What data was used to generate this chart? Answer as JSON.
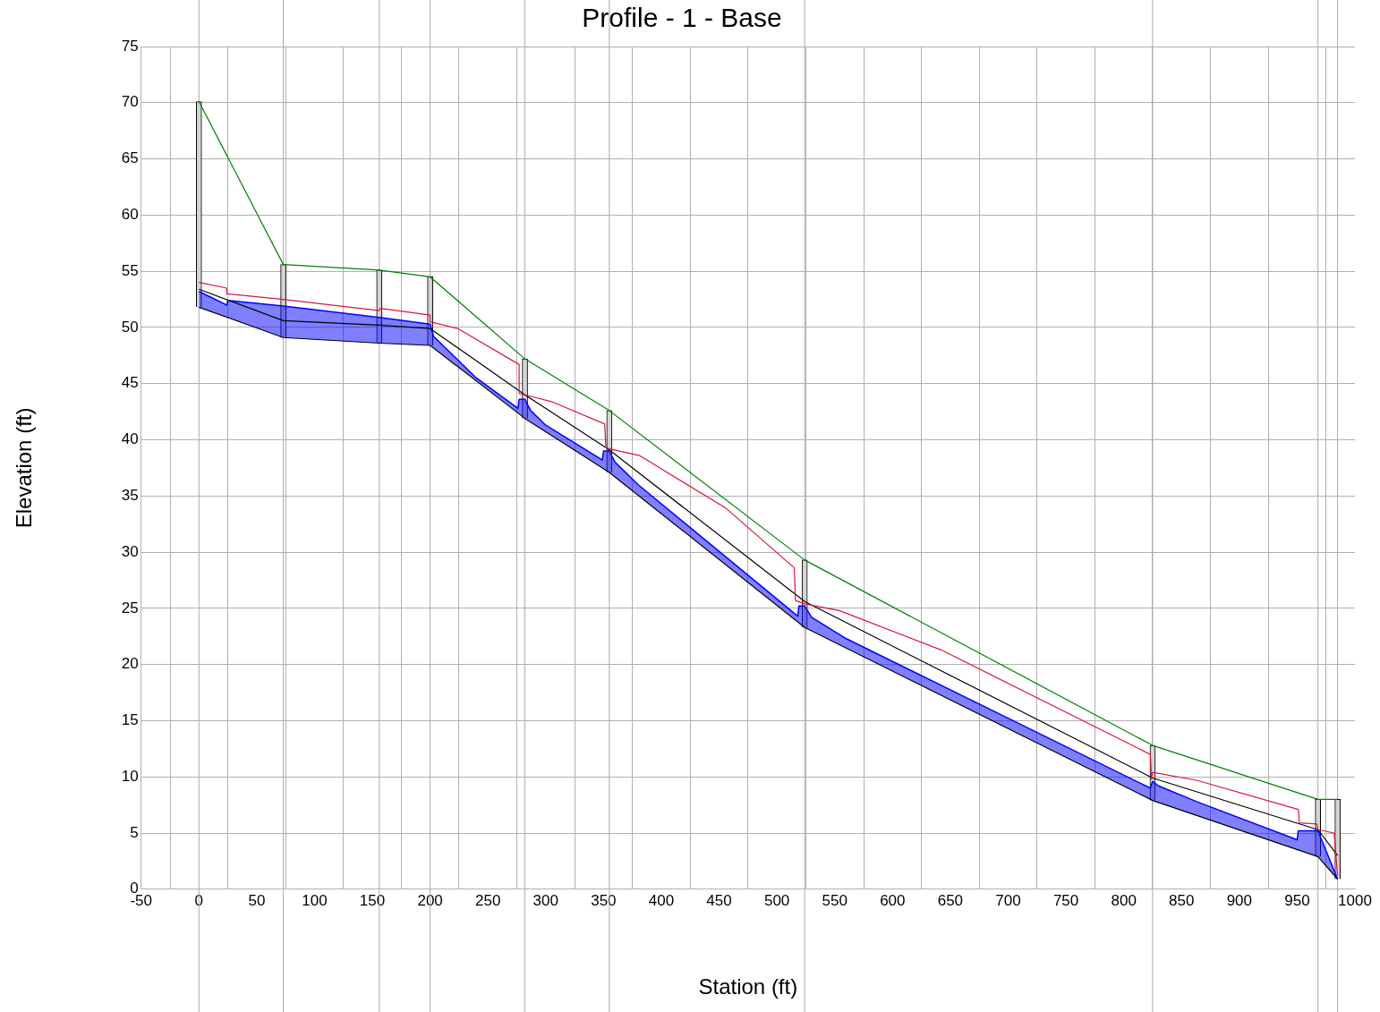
{
  "chart_data": {
    "type": "line",
    "title": "Profile - 1 - Base",
    "xlabel": "Station (ft)",
    "ylabel": "Elevation (ft)",
    "xlim": [
      -50,
      1000
    ],
    "xticks": [
      -50,
      0,
      50,
      100,
      150,
      200,
      250,
      300,
      350,
      400,
      450,
      500,
      550,
      600,
      650,
      700,
      750,
      800,
      850,
      900,
      950,
      1000
    ],
    "ylim": [
      0,
      75
    ],
    "yticks": [
      0,
      5,
      10,
      15,
      20,
      25,
      30,
      35,
      40,
      45,
      50,
      55,
      60,
      65,
      70,
      75
    ],
    "grid": true,
    "series": [
      {
        "color": "#008000",
        "x": [
          0,
          73,
          156,
          200,
          282,
          355,
          524,
          825,
          968,
          985
        ],
        "values": [
          70.1,
          55.6,
          55.1,
          54.5,
          47.2,
          42.6,
          29.3,
          12.8,
          8.0,
          8.0
        ]
      },
      {
        "type": "line",
        "color": "#dc143c",
        "x": [
          0,
          24,
          24,
          73,
          156,
          157,
          200,
          200,
          224,
          277,
          277,
          282,
          305,
          351,
          352,
          355,
          381,
          456,
          515,
          516,
          524,
          554,
          642,
          823,
          824,
          825,
          863,
          951,
          952,
          967,
          968,
          982,
          985
        ],
        "values": [
          54.0,
          53.5,
          53.0,
          52.5,
          51.5,
          51.7,
          51.1,
          50.5,
          49.9,
          46.7,
          44.1,
          44.0,
          43.4,
          41.4,
          39.3,
          39.2,
          38.6,
          33.9,
          28.6,
          25.7,
          25.4,
          24.8,
          21.3,
          12.0,
          9.8,
          10.4,
          9.7,
          7.1,
          5.9,
          5.8,
          5.3,
          5.0,
          1.2
        ]
      },
      {
        "type": "line",
        "color": "#000000",
        "x": [
          0,
          73,
          156,
          200,
          282,
          355,
          524,
          825,
          968,
          985
        ],
        "values": [
          53.4,
          50.6,
          50.2,
          49.9,
          44.0,
          39.1,
          25.6,
          9.9,
          5.3,
          3.0
        ]
      },
      {
        "type": "line",
        "color": "#000000",
        "x": [
          0,
          73,
          156,
          200,
          282,
          355,
          524,
          825,
          968,
          985
        ],
        "values": [
          51.8,
          49.1,
          48.6,
          48.4,
          41.9,
          37.1,
          23.3,
          7.9,
          2.9,
          0.9
        ]
      },
      {
        "type": "area",
        "color": "#0000ff",
        "x": [
          0,
          10,
          24,
          25,
          73,
          156,
          200,
          203,
          215,
          240,
          276,
          277,
          282,
          287,
          300,
          349,
          350,
          355,
          360,
          380,
          518,
          519,
          524,
          530,
          560,
          823,
          825,
          830,
          863,
          950,
          951,
          968,
          985
        ],
        "values": [
          53.2,
          52.7,
          52.0,
          52.4,
          51.9,
          50.9,
          50.3,
          49.2,
          48.0,
          45.5,
          42.8,
          43.6,
          43.6,
          42.6,
          41.3,
          38.2,
          39.0,
          39.0,
          38.0,
          36.0,
          24.3,
          25.2,
          25.2,
          24.2,
          22.3,
          9.0,
          9.6,
          9.2,
          7.8,
          4.4,
          5.2,
          5.2,
          0.9
        ]
      },
      {
        "type": "bar",
        "color": "#d3d3d3",
        "x": [
          0,
          73,
          156,
          200,
          282,
          355,
          524,
          825,
          968,
          985
        ],
        "base": [
          51.8,
          49.1,
          48.6,
          48.4,
          41.9,
          37.1,
          23.3,
          7.9,
          2.9,
          0.9
        ],
        "values": [
          18.3,
          6.5,
          6.5,
          6.1,
          5.3,
          5.5,
          6.0,
          4.9,
          5.1,
          7.1
        ]
      }
    ],
    "ref_lines": [
      {
        "axis": "x",
        "value": 0,
        "color": "#aaaaaa"
      },
      {
        "axis": "x",
        "value": 73,
        "color": "#aaaaaa"
      },
      {
        "axis": "x",
        "value": 156,
        "color": "#aaaaaa"
      },
      {
        "axis": "x",
        "value": 200,
        "color": "#aaaaaa"
      },
      {
        "axis": "x",
        "value": 282,
        "color": "#aaaaaa"
      },
      {
        "axis": "x",
        "value": 355,
        "color": "#aaaaaa"
      },
      {
        "axis": "x",
        "value": 524,
        "color": "#aaaaaa"
      },
      {
        "axis": "x",
        "value": 825,
        "color": "#aaaaaa"
      },
      {
        "axis": "x",
        "value": 968,
        "color": "#aaaaaa"
      },
      {
        "axis": "x",
        "value": 985,
        "color": "#aaaaaa"
      }
    ]
  }
}
